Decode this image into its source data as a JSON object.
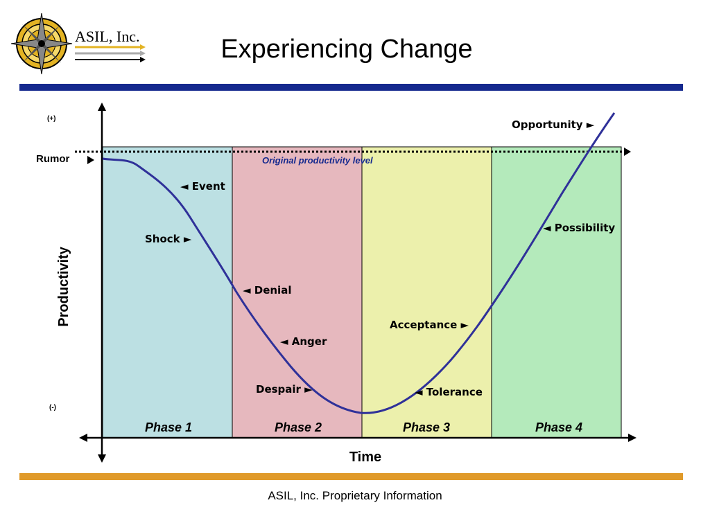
{
  "header": {
    "logo_text": "ASIL, Inc.",
    "title": "Experiencing Change"
  },
  "footer": {
    "text": "ASIL, Inc. Proprietary Information"
  },
  "colors": {
    "top_band": "#15298e",
    "bottom_band": "#e09a2a",
    "curve": "#2f3199"
  },
  "chart_data": {
    "type": "line",
    "xlabel": "Time",
    "ylabel": "Productivity",
    "y_top_label": "(+)",
    "y_bottom_label": "(-)",
    "reference_line": {
      "label": "Original productivity level",
      "start_label": "Rumor"
    },
    "phases": [
      {
        "name": "Phase 1",
        "color": "#bce0e3"
      },
      {
        "name": "Phase 2",
        "color": "#e6b8be"
      },
      {
        "name": "Phase 3",
        "color": "#ecf0ac"
      },
      {
        "name": "Phase 4",
        "color": "#b4eabb"
      }
    ],
    "annotations": [
      {
        "text": "◄ Event"
      },
      {
        "text": "Shock ►"
      },
      {
        "text": "◄ Denial"
      },
      {
        "text": "◄ Anger"
      },
      {
        "text": "Despair ►"
      },
      {
        "text": "◄ Tolerance"
      },
      {
        "text": "Acceptance ►"
      },
      {
        "text": "◄ Possibility"
      },
      {
        "text": "Opportunity ►"
      }
    ]
  }
}
